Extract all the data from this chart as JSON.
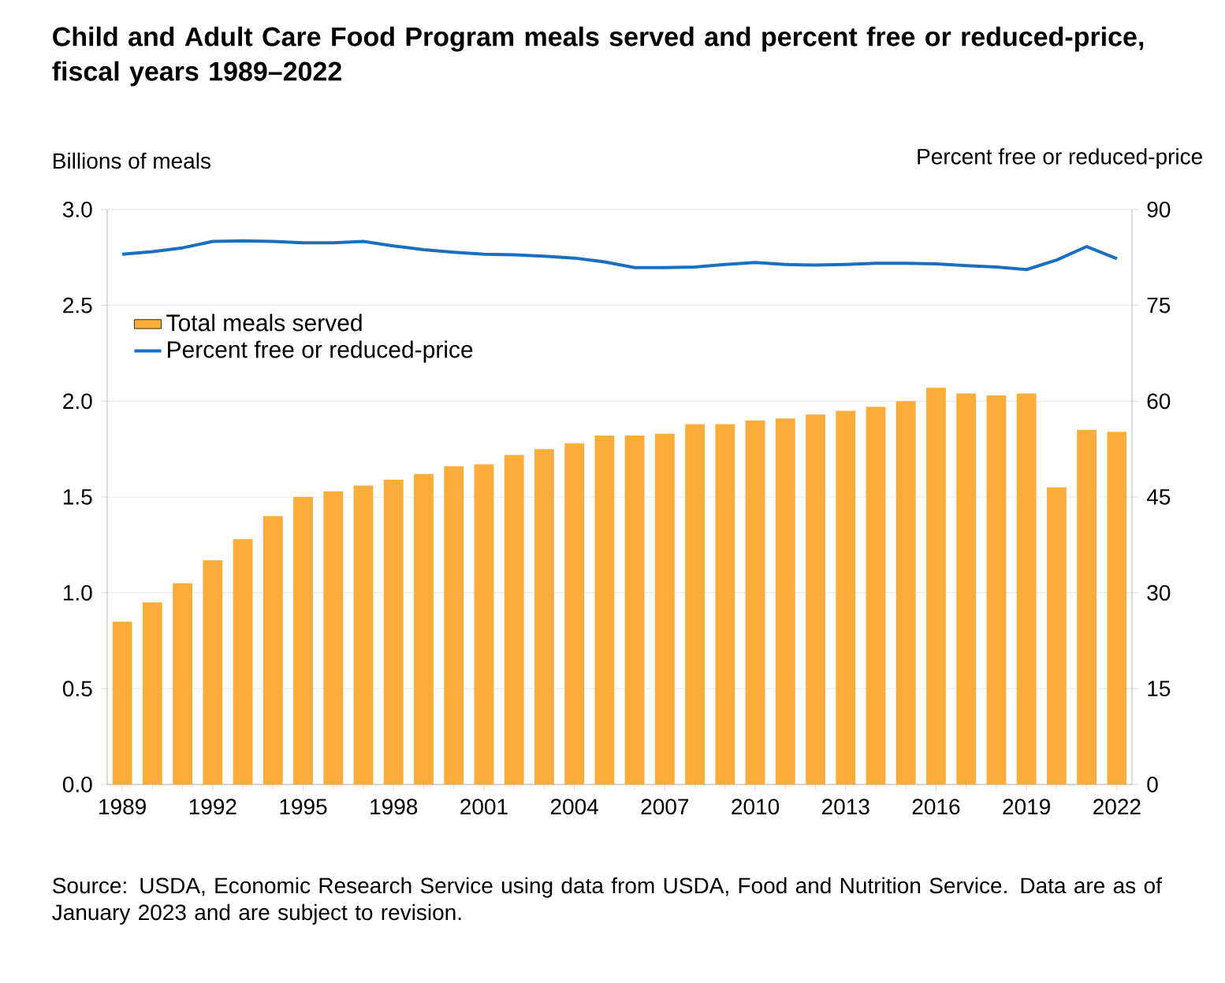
{
  "chart_data": {
    "type": "bar",
    "title": "Child and Adult Care Food Program meals served and percent free or reduced-price, fiscal years 1989–2022",
    "ylabel": "Billions of meals",
    "y2label": "Percent free or reduced-price",
    "x": [
      1989,
      1990,
      1991,
      1992,
      1993,
      1994,
      1995,
      1996,
      1997,
      1998,
      1999,
      2000,
      2001,
      2002,
      2003,
      2004,
      2005,
      2006,
      2007,
      2008,
      2009,
      2010,
      2011,
      2012,
      2013,
      2014,
      2015,
      2016,
      2017,
      2018,
      2019,
      2020,
      2021,
      2022
    ],
    "series": [
      {
        "name": "Total meals served",
        "color": "#fbad3c",
        "values": [
          0.85,
          0.95,
          1.05,
          1.17,
          1.28,
          1.4,
          1.5,
          1.53,
          1.56,
          1.59,
          1.62,
          1.66,
          1.67,
          1.72,
          1.75,
          1.78,
          1.82,
          1.82,
          1.83,
          1.88,
          1.88,
          1.9,
          1.91,
          1.93,
          1.95,
          1.97,
          2.0,
          2.07,
          2.04,
          2.03,
          2.04,
          1.55,
          1.85,
          1.84
        ]
      },
      {
        "name": "Percent free or reduced-price",
        "type": "line",
        "axis": "y2",
        "color": "#1a6fc0",
        "values": [
          83.0,
          83.4,
          84.0,
          85.0,
          85.1,
          85.0,
          84.8,
          84.8,
          85.0,
          84.3,
          83.7,
          83.3,
          83.0,
          82.9,
          82.7,
          82.4,
          81.8,
          80.9,
          80.9,
          81.0,
          81.4,
          81.7,
          81.4,
          81.3,
          81.4,
          81.6,
          81.6,
          81.5,
          81.2,
          81.0,
          80.6,
          82.1,
          84.2,
          82.3
        ]
      }
    ],
    "xlim": [
      1988.5,
      2022.5
    ],
    "xticks": [
      1989,
      1992,
      1995,
      1998,
      2001,
      2004,
      2007,
      2010,
      2013,
      2016,
      2019,
      2022
    ],
    "ylim": [
      0,
      3
    ],
    "yticks": [
      {
        "value": 0,
        "label": "0.0"
      },
      {
        "value": 0.5,
        "label": "0.5"
      },
      {
        "value": 1,
        "label": "1.0"
      },
      {
        "value": 1.5,
        "label": "1.5"
      },
      {
        "value": 2,
        "label": "2.0"
      },
      {
        "value": 2.5,
        "label": "2.5"
      },
      {
        "value": 3,
        "label": "3.0"
      }
    ],
    "y2lim": [
      0,
      90
    ],
    "y2ticks": [
      0,
      15,
      30,
      45,
      60,
      75,
      90
    ],
    "grid": "y",
    "legend": "top left",
    "annotations": [
      "Source: USDA, Economic Research Service using data from USDA, Food and Nutrition Service. Data are as of January 2023 and are subject to revision."
    ]
  }
}
